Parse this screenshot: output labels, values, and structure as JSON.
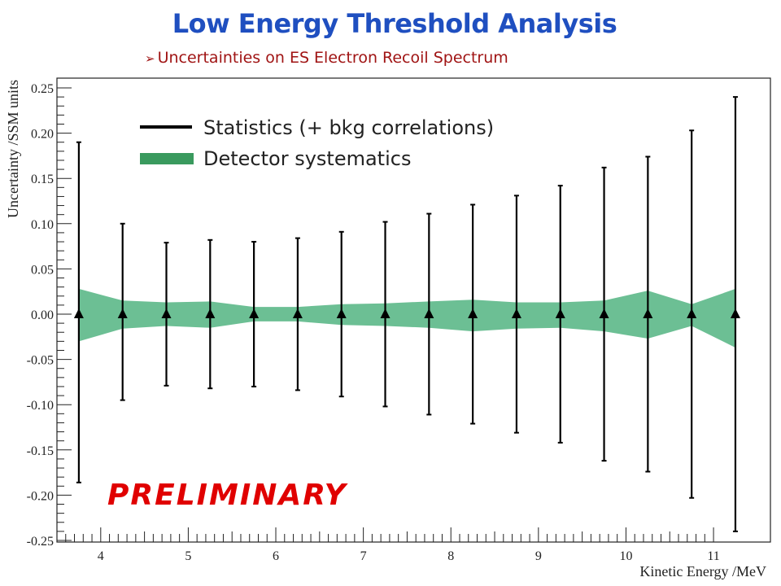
{
  "header": {
    "title": "Low Energy Threshold Analysis",
    "subtitle": "Uncertainties on ES Electron Recoil Spectrum",
    "subtitle_bullet": "➢"
  },
  "overlay": {
    "watermark": "PRELIMINARY"
  },
  "colors": {
    "title": "#1f4fc0",
    "subtitle": "#a01414",
    "band": "#6cbf94",
    "error_bars": "#000000",
    "watermark": "#e00000"
  },
  "chart_data": {
    "type": "errorbar",
    "xlabel": "Kinetic Energy /MeV",
    "ylabel": "Uncertainty /SSM units",
    "xlim": [
      3.5,
      11.65
    ],
    "ylim": [
      -0.25,
      0.25
    ],
    "x_ticks": [
      4,
      5,
      6,
      7,
      8,
      9,
      10,
      11
    ],
    "y_ticks": [
      -0.25,
      -0.2,
      -0.15,
      -0.1,
      -0.05,
      0.0,
      0.05,
      0.1,
      0.15,
      0.2,
      0.25
    ],
    "y_tick_labels": [
      "-0.25",
      "-0.20",
      "-0.15",
      "-0.10",
      "-0.05",
      "0.00",
      "0.05",
      "0.10",
      "0.15",
      "0.20",
      "0.25"
    ],
    "legend": [
      {
        "label": "Statistics (+ bkg correlations)",
        "style": "line"
      },
      {
        "label": "Detector systematics",
        "style": "band"
      }
    ],
    "series": [
      {
        "name": "Statistics (+ bkg correlations)",
        "x": [
          3.75,
          4.25,
          4.75,
          5.25,
          5.75,
          6.25,
          6.75,
          7.25,
          7.75,
          8.25,
          8.75,
          9.25,
          9.75,
          10.25,
          10.75,
          11.25
        ],
        "y": [
          0,
          0,
          0,
          0,
          0,
          0,
          0,
          0,
          0,
          0,
          0,
          0,
          0,
          0,
          0,
          0
        ],
        "err_plus": [
          0.19,
          0.1,
          0.079,
          0.082,
          0.08,
          0.084,
          0.091,
          0.102,
          0.111,
          0.121,
          0.131,
          0.142,
          0.162,
          0.174,
          0.203,
          0.24
        ],
        "err_minus": [
          0.186,
          0.095,
          0.079,
          0.082,
          0.08,
          0.084,
          0.091,
          0.102,
          0.111,
          0.121,
          0.131,
          0.142,
          0.162,
          0.174,
          0.203,
          0.24
        ]
      },
      {
        "name": "Detector systematics",
        "x": [
          3.75,
          4.25,
          4.75,
          5.25,
          5.75,
          6.25,
          6.75,
          7.25,
          7.75,
          8.25,
          8.75,
          9.25,
          9.75,
          10.25,
          10.75,
          11.25
        ],
        "upper": [
          0.028,
          0.015,
          0.013,
          0.014,
          0.008,
          0.008,
          0.011,
          0.012,
          0.014,
          0.016,
          0.013,
          0.013,
          0.015,
          0.026,
          0.011,
          0.028
        ],
        "lower": [
          -0.03,
          -0.016,
          -0.013,
          -0.015,
          -0.008,
          -0.008,
          -0.012,
          -0.013,
          -0.015,
          -0.019,
          -0.016,
          -0.015,
          -0.019,
          -0.027,
          -0.013,
          -0.037
        ]
      }
    ]
  }
}
